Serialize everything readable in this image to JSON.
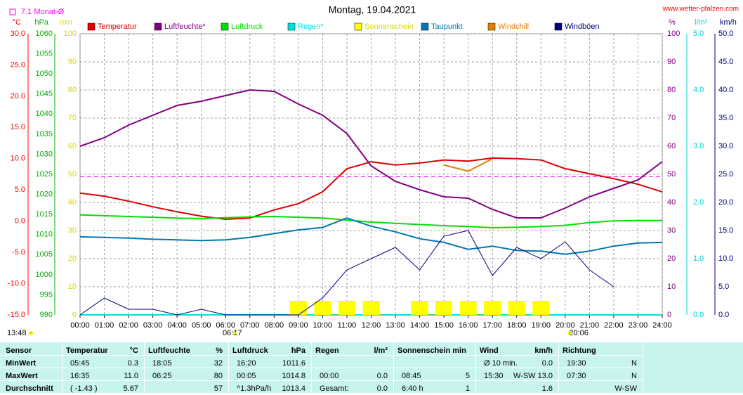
{
  "chart_data": {
    "type": "line",
    "title": "Montag, 19.04.2021",
    "source": "www.wetter-pfalzen.com",
    "current_time": "13:48",
    "sunrise": "06:17",
    "sunset": "20:06",
    "monthly_average": {
      "label": "7.1 Monat-Ø",
      "value": 7.1,
      "axis": "°C",
      "color": "#ff00ff"
    },
    "grid": true,
    "axes": [
      {
        "label": "°C",
        "color": "#ff0000",
        "lim": [
          -15,
          30
        ],
        "ticks": [
          {
            "value": -15,
            "label": "-15.0"
          },
          {
            "value": -10,
            "label": "-10.0"
          },
          {
            "value": -5,
            "label": "-5.0"
          },
          {
            "value": 0,
            "label": "0.0"
          },
          {
            "value": 5,
            "label": "5.0"
          },
          {
            "value": 10,
            "label": "10.0"
          },
          {
            "value": 15,
            "label": "15.0"
          },
          {
            "value": 20,
            "label": "20.0"
          },
          {
            "value": 25,
            "label": "25.0"
          },
          {
            "value": 30,
            "label": "30.0"
          }
        ]
      },
      {
        "label": "hPa",
        "color": "#00b000",
        "lim": [
          990,
          1060
        ],
        "ticks": [
          990,
          995,
          1000,
          1005,
          1010,
          1015,
          1020,
          1025,
          1030,
          1035,
          1040,
          1045,
          1050,
          1055,
          1060
        ]
      },
      {
        "label": "min",
        "color": "#d8d800",
        "lim": [
          0,
          100
        ],
        "ticks": [
          0,
          10,
          20,
          30,
          40,
          50,
          60,
          70,
          80,
          90,
          100
        ]
      },
      {
        "label": "%",
        "color": "#800080",
        "lim": [
          0,
          100
        ],
        "ticks": [
          0,
          10,
          20,
          30,
          40,
          50,
          60,
          70,
          80,
          90,
          100
        ]
      },
      {
        "label": "l/m²",
        "color": "#00d0d0",
        "lim": [
          0,
          5
        ],
        "ticks": [
          {
            "value": 0,
            "label": "0.0"
          },
          {
            "value": 1,
            "label": "1.0"
          },
          {
            "value": 2,
            "label": "2.0"
          },
          {
            "value": 3,
            "label": "3.0"
          },
          {
            "value": 4,
            "label": "4.0"
          },
          {
            "value": 5,
            "label": "5.0"
          }
        ]
      },
      {
        "label": "km/h",
        "color": "#000080",
        "lim": [
          0,
          50
        ],
        "ticks": [
          {
            "value": 0,
            "label": "0.0"
          },
          {
            "value": 5,
            "label": "5.0"
          },
          {
            "value": 10,
            "label": "10.0"
          },
          {
            "value": 15,
            "label": "15.0"
          },
          {
            "value": 20,
            "label": "20.0"
          },
          {
            "value": 25,
            "label": "25.0"
          },
          {
            "value": 30,
            "label": "30.0"
          },
          {
            "value": 35,
            "label": "35.0"
          },
          {
            "value": 40,
            "label": "40.0"
          },
          {
            "value": 45,
            "label": "45.0"
          },
          {
            "value": 50,
            "label": "50.0"
          }
        ]
      }
    ],
    "xlim": [
      0,
      24
    ],
    "xticks": [
      {
        "value": 0,
        "label": "00:00"
      },
      {
        "value": 1,
        "label": "01:00"
      },
      {
        "value": 2,
        "label": "02:00"
      },
      {
        "value": 3,
        "label": "03:00"
      },
      {
        "value": 4,
        "label": "04:00"
      },
      {
        "value": 5,
        "label": "05:00"
      },
      {
        "value": 6,
        "label": "06:00"
      },
      {
        "value": 7,
        "label": "07:00"
      },
      {
        "value": 8,
        "label": "08:00"
      },
      {
        "value": 9,
        "label": "09:00"
      },
      {
        "value": 10,
        "label": "10:00"
      },
      {
        "value": 11,
        "label": "11:00"
      },
      {
        "value": 12,
        "label": "12:00"
      },
      {
        "value": 13,
        "label": "13:00"
      },
      {
        "value": 14,
        "label": "14:00"
      },
      {
        "value": 15,
        "label": "15:00"
      },
      {
        "value": 16,
        "label": "16:00"
      },
      {
        "value": 17,
        "label": "17:00"
      },
      {
        "value": 18,
        "label": "18:00"
      },
      {
        "value": 19,
        "label": "19:00"
      },
      {
        "value": 20,
        "label": "20:00"
      },
      {
        "value": 21,
        "label": "21:00"
      },
      {
        "value": 22,
        "label": "22:00"
      },
      {
        "value": 23,
        "label": "23:00"
      },
      {
        "value": 24,
        "label": "24:00"
      }
    ],
    "x": [
      0,
      1,
      2,
      3,
      4,
      5,
      6,
      7,
      8,
      9,
      10,
      11,
      12,
      13,
      14,
      15,
      16,
      17,
      18,
      19,
      20,
      21,
      22,
      23,
      24
    ],
    "series": [
      {
        "name": "Temperatur",
        "color": "#e00000",
        "axis": "°C",
        "style": "line",
        "values": [
          4.5,
          4.0,
          3.2,
          2.3,
          1.5,
          0.8,
          0.3,
          0.5,
          1.8,
          2.8,
          4.7,
          8.4,
          9.5,
          9.0,
          9.3,
          9.8,
          9.6,
          10.1,
          10.0,
          9.8,
          8.4,
          7.6,
          6.8,
          5.9,
          4.7
        ]
      },
      {
        "name": "Luftfeuchte*",
        "color": "#800080",
        "axis": "%",
        "style": "line",
        "values": [
          60,
          63,
          67.5,
          71,
          74.5,
          76,
          78,
          80,
          79.5,
          75,
          71,
          64.5,
          53,
          47.5,
          44.5,
          42,
          41.5,
          37.5,
          34.5,
          34.5,
          38,
          42,
          45,
          48,
          54.5
        ]
      },
      {
        "name": "Luftdruck",
        "color": "#00e000",
        "axis": "hPa",
        "style": "line",
        "values": [
          1014.9,
          1014.7,
          1014.5,
          1014.3,
          1014.1,
          1014.0,
          1014.2,
          1014.4,
          1014.5,
          1014.3,
          1014.1,
          1013.6,
          1013.1,
          1012.8,
          1012.5,
          1012.2,
          1012.0,
          1011.7,
          1011.8,
          1012.0,
          1012.3,
          1013.0,
          1013.4,
          1013.5,
          1013.5
        ]
      },
      {
        "name": "Regen*",
        "color": "#00e0e0",
        "axis": "l/m²",
        "style": "line",
        "values": [
          0,
          0,
          0,
          0,
          0,
          0,
          0,
          0,
          0,
          0,
          0,
          0,
          0,
          0,
          0,
          0,
          0,
          0,
          0,
          0,
          0,
          0,
          0,
          0,
          0
        ]
      },
      {
        "name": "Sonnenschein",
        "color": "#ffff00",
        "axis": "min",
        "style": "bar",
        "values": [
          0,
          0,
          0,
          0,
          0,
          0,
          0,
          0,
          0,
          5,
          5,
          5,
          5,
          0,
          5,
          5,
          5,
          5,
          5,
          5,
          0,
          0,
          0,
          0,
          0
        ]
      },
      {
        "name": "Taupunkt",
        "color": "#0078b0",
        "axis": "°C",
        "style": "line",
        "values": [
          -2.5,
          -2.6,
          -2.7,
          -2.9,
          -3.0,
          -3.1,
          -3.0,
          -2.6,
          -2.0,
          -1.4,
          -1.0,
          0.5,
          -0.8,
          -1.7,
          -2.8,
          -3.4,
          -4.5,
          -4.0,
          -4.7,
          -4.8,
          -5.3,
          -4.8,
          -4.0,
          -3.5,
          -3.4
        ]
      },
      {
        "name": "Windchill",
        "color": "#e08000",
        "axis": "°C",
        "style": "line",
        "values": [
          null,
          null,
          null,
          null,
          null,
          null,
          null,
          null,
          null,
          null,
          null,
          null,
          null,
          null,
          null,
          9.0,
          8.0,
          10.0,
          null,
          null,
          null,
          null,
          null,
          null,
          null
        ]
      },
      {
        "name": "Windböen",
        "color": "#000080",
        "axis": "km/h",
        "style": "thin",
        "values": [
          0,
          3,
          1,
          1,
          0,
          1,
          0,
          0,
          0,
          0,
          3,
          8,
          10,
          12,
          8,
          14,
          15,
          7,
          12,
          10,
          13,
          8,
          5,
          null,
          null
        ]
      }
    ]
  },
  "table": {
    "header": "Sensor",
    "row_labels": [
      "MinWert",
      "MaxWert",
      "Durchschnitt"
    ],
    "groups": [
      {
        "title": "Temperatur",
        "unit": "°C",
        "cells": [
          [
            "05:45",
            "0.3"
          ],
          [
            "16:35",
            "11.0"
          ],
          [
            "( -1.43 )",
            "5.67"
          ]
        ]
      },
      {
        "title": "Luftfeuchte",
        "unit": "%",
        "cells": [
          [
            "18:05",
            "32"
          ],
          [
            "06:25",
            "80"
          ],
          [
            null,
            "57"
          ]
        ]
      },
      {
        "title": "Luftdruck",
        "unit": "hPa",
        "cells": [
          [
            "16:20",
            "1011.6"
          ],
          [
            "00:05",
            "1014.8"
          ],
          [
            "^1.3hPa/h",
            "1013.4"
          ]
        ]
      },
      {
        "title": "Regen",
        "unit": "l/m²",
        "cells": [
          [
            null,
            null
          ],
          [
            "00:00",
            "0.0"
          ],
          [
            "Gesamt:",
            "0.0"
          ]
        ]
      },
      {
        "title": "Sonnenschein min",
        "unit": null,
        "cells": [
          [
            null,
            null
          ],
          [
            "08:45",
            "5"
          ],
          [
            "6:40 h",
            "1"
          ]
        ]
      },
      {
        "title": "Wind",
        "unit": "km/h",
        "cells": [
          [
            "Ø 10 min.",
            "0.0"
          ],
          [
            "15:30",
            "W-SW 13.0"
          ],
          [
            null,
            "1.6"
          ]
        ]
      },
      {
        "title": "Richtung",
        "unit": null,
        "cells": [
          [
            "19:30",
            "N"
          ],
          [
            "07:30",
            "N"
          ],
          [
            null,
            "W-SW"
          ]
        ]
      }
    ]
  }
}
